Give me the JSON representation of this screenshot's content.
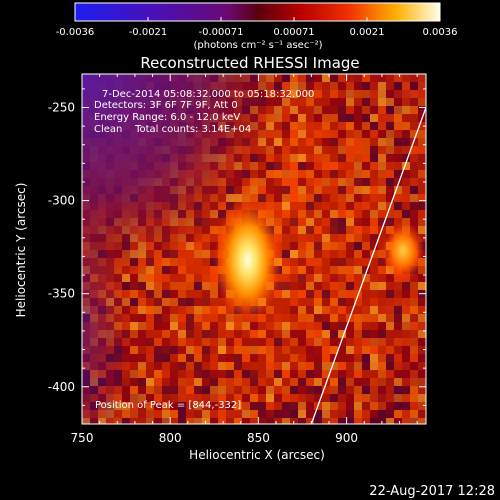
{
  "colorbar": {
    "ticks": [
      "-0.0036",
      "-0.0021",
      "-0.00071",
      "0.00071",
      "0.0021",
      "0.0036"
    ],
    "units": "(photons cm⁻² s⁻¹ asec⁻²)",
    "range": [
      -0.0036,
      0.0036
    ]
  },
  "chart_data": {
    "type": "heatmap",
    "title": "Reconstructed RHESSI Image",
    "xlabel": "Heliocentric X (arcsec)",
    "ylabel": "Heliocentric Y (arcsec)",
    "xlim": [
      750,
      945
    ],
    "ylim": [
      -420,
      -232
    ],
    "xticks": [
      750,
      800,
      850,
      900
    ],
    "yticks": [
      -250,
      -300,
      -350,
      -400
    ],
    "xtick_labels": [
      "750",
      "800",
      "850",
      "900"
    ],
    "ytick_labels": [
      "-250",
      "-300",
      "-350",
      "-400"
    ],
    "annotations": [
      "7-Dec-2014 05:08:32.000 to 05:18:32.000",
      "Detectors: 3F 6F 7F 9F, Att 0",
      "Energy Range: 6.0 - 12.0 keV",
      "Clean    Total counts: 3.14E+04"
    ],
    "peak_label": "Position of Peak = [844,-332]",
    "peak": [
      844,
      -332
    ],
    "secondary_source": [
      932,
      -327
    ],
    "limb_line": [
      [
        880,
        -420
      ],
      [
        945,
        -250
      ]
    ],
    "colormap": "rhessi_hot"
  },
  "footer": {
    "date": "22-Aug-2017 12:28"
  }
}
